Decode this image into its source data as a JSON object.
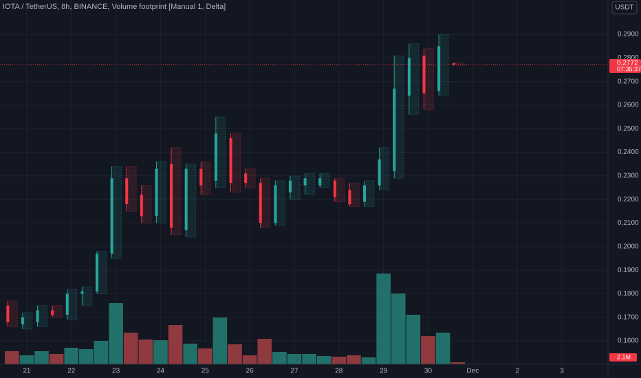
{
  "chart_data": {
    "type": "candlestick",
    "title": "IOTA / TetherUS, 8h, BINANCE, Volume footprint [Manual 1, Delta]",
    "currency": "USDT",
    "open": [
      0.175,
      0.167,
      0.168,
      0.173,
      0.171,
      0.18,
      0.181,
      0.197,
      0.229,
      0.222,
      0.213,
      0.235,
      0.207,
      0.233,
      0.228,
      0.246,
      0.231,
      0.227,
      0.21,
      0.223,
      0.226,
      0.226,
      0.228,
      0.224,
      0.219,
      0.226,
      0.232,
      0.264,
      0.281,
      0.266,
      0.2778
    ],
    "high": [
      0.177,
      0.172,
      0.175,
      0.175,
      0.182,
      0.183,
      0.198,
      0.234,
      0.234,
      0.226,
      0.236,
      0.242,
      0.235,
      0.236,
      0.255,
      0.248,
      0.233,
      0.229,
      0.228,
      0.23,
      0.231,
      0.231,
      0.229,
      0.227,
      0.228,
      0.242,
      0.281,
      0.286,
      0.284,
      0.29,
      0.278
    ],
    "low": [
      0.166,
      0.165,
      0.166,
      0.17,
      0.169,
      0.175,
      0.18,
      0.195,
      0.215,
      0.21,
      0.21,
      0.205,
      0.204,
      0.222,
      0.225,
      0.223,
      0.225,
      0.208,
      0.209,
      0.22,
      0.222,
      0.225,
      0.219,
      0.217,
      0.217,
      0.224,
      0.229,
      0.256,
      0.258,
      0.264,
      0.2768
    ],
    "close": [
      0.168,
      0.17,
      0.173,
      0.171,
      0.18,
      0.181,
      0.197,
      0.229,
      0.218,
      0.213,
      0.233,
      0.208,
      0.233,
      0.226,
      0.248,
      0.227,
      0.227,
      0.21,
      0.226,
      0.228,
      0.229,
      0.229,
      0.221,
      0.218,
      0.226,
      0.237,
      0.267,
      0.28,
      0.265,
      0.285,
      0.2772
    ],
    "volume": [
      13.3,
      9.1,
      13.3,
      10.5,
      16.8,
      15.4,
      23.8,
      62.3,
      32.2,
      25.2,
      24.5,
      39.9,
      21.0,
      16.1,
      47.6,
      20.3,
      9.1,
      25.9,
      12.6,
      10.5,
      10.5,
      8.4,
      7.7,
      9.1,
      7.0,
      92.4,
      72.1,
      50.4,
      28.7,
      32.2,
      2.1
    ],
    "last_volume_label": "2.1M",
    "last_price": {
      "value": 0.2772,
      "label": "0.2772"
    },
    "countdown": "07:35:37",
    "xlim": [
      -0.8,
      40.1
    ],
    "xticks": [
      {
        "value": 1,
        "label": "21"
      },
      {
        "value": 4,
        "label": "22"
      },
      {
        "value": 7,
        "label": "23"
      },
      {
        "value": 10,
        "label": "24"
      },
      {
        "value": 13,
        "label": "25"
      },
      {
        "value": 16,
        "label": "26"
      },
      {
        "value": 19,
        "label": "27"
      },
      {
        "value": 22,
        "label": "28"
      },
      {
        "value": 25,
        "label": "29"
      },
      {
        "value": 28,
        "label": "30"
      },
      {
        "value": 31,
        "label": "Dec"
      },
      {
        "value": 34,
        "label": "2"
      },
      {
        "value": 37,
        "label": "3"
      }
    ],
    "ylim": [
      0.1501,
      0.3046
    ],
    "yticks": [
      {
        "value": 0.16,
        "label": "0.1600"
      },
      {
        "value": 0.17,
        "label": "0.1700"
      },
      {
        "value": 0.18,
        "label": "0.1800"
      },
      {
        "value": 0.19,
        "label": "0.1900"
      },
      {
        "value": 0.2,
        "label": "0.2000"
      },
      {
        "value": 0.21,
        "label": "0.2100"
      },
      {
        "value": 0.22,
        "label": "0.2200"
      },
      {
        "value": 0.23,
        "label": "0.2300"
      },
      {
        "value": 0.24,
        "label": "0.2400"
      },
      {
        "value": 0.25,
        "label": "0.2500"
      },
      {
        "value": 0.26,
        "label": "0.2600"
      },
      {
        "value": 0.27,
        "label": "0.2700"
      },
      {
        "value": 0.28,
        "label": "0.2800"
      },
      {
        "value": 0.29,
        "label": "0.2900"
      }
    ],
    "volume_ylim": [
      0,
      371
    ],
    "grid": true,
    "up_color": "#26a69a",
    "down_color": "#f23645",
    "volume_up_color": "#22706a",
    "volume_down_color": "#8e3a3f"
  }
}
